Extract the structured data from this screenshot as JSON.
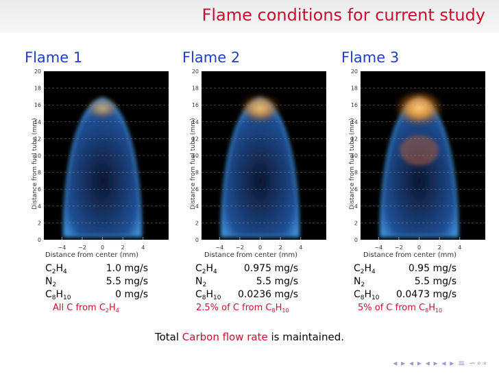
{
  "slide": {
    "title": "Flame conditions for current study"
  },
  "flames": [
    {
      "title": "Flame 1",
      "conditions": [
        {
          "name": "C",
          "sub1": "2",
          "h": "H",
          "sub2": "4",
          "flow": "1.0 mg/s"
        },
        {
          "name": "N",
          "sub1": "2",
          "h": "",
          "sub2": "",
          "flow": "5.5 mg/s"
        },
        {
          "name": "C",
          "sub1": "8",
          "h": "H",
          "sub2": "10",
          "flow": "0 mg/s"
        }
      ],
      "note_prefix": "All C from C",
      "note_sub1": "2",
      "note_mid": "H",
      "note_sub2": "4"
    },
    {
      "title": "Flame 2",
      "conditions": [
        {
          "name": "C",
          "sub1": "2",
          "h": "H",
          "sub2": "4",
          "flow": "0.975 mg/s"
        },
        {
          "name": "N",
          "sub1": "2",
          "h": "",
          "sub2": "",
          "flow": "5.5 mg/s"
        },
        {
          "name": "C",
          "sub1": "8",
          "h": "H",
          "sub2": "10",
          "flow": "0.0236 mg/s"
        }
      ],
      "note_prefix": "2.5% of C from C",
      "note_sub1": "8",
      "note_mid": "H",
      "note_sub2": "10"
    },
    {
      "title": "Flame 3",
      "conditions": [
        {
          "name": "C",
          "sub1": "2",
          "h": "H",
          "sub2": "4",
          "flow": "0.95 mg/s"
        },
        {
          "name": "N",
          "sub1": "2",
          "h": "",
          "sub2": "",
          "flow": "5.5 mg/s"
        },
        {
          "name": "C",
          "sub1": "8",
          "h": "H",
          "sub2": "10",
          "flow": "0.0473 mg/s"
        }
      ],
      "note_prefix": "5% of C from C",
      "note_sub1": "8",
      "note_mid": "H",
      "note_sub2": "10"
    }
  ],
  "axes": {
    "xlabel": "Distance from center (mm)",
    "ylabel": "Distance from fuel tube (mm)",
    "xticks": [
      "−4",
      "−2",
      "0",
      "2",
      "4"
    ],
    "yticks": [
      "0",
      "2",
      "4",
      "6",
      "8",
      "10",
      "12",
      "14",
      "16",
      "18",
      "20"
    ]
  },
  "footer": {
    "pre": "Total ",
    "highlight": "Carbon flow rate",
    "post": " is maintained."
  },
  "colors": {
    "title": "#c8102e",
    "flame_heading": "#1f3fbf",
    "flame_blue": "#3f8fd8",
    "soot_orange": "#ff9a2a"
  },
  "navbar": {
    "symbols": "◂ ▸ ◂ ▸ ◂ ▸ ◂ ▸ ≡ ∽∘∘"
  }
}
